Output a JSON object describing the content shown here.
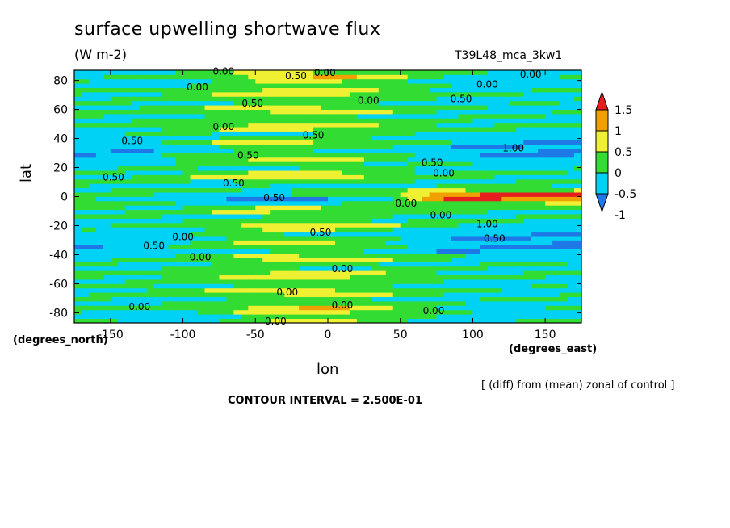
{
  "chart_data": {
    "type": "heatmap",
    "title": "surface upwelling shortwave flux",
    "units": "(W m-2)",
    "run_label": "T39L48_mca_3kw1",
    "xlabel": "lon",
    "ylabel": "lat",
    "x_units": "(degrees_east)",
    "y_units": "(degrees_north)",
    "xlim": [
      -175,
      175
    ],
    "ylim": [
      -87,
      87
    ],
    "x_ticks": [
      -150,
      -100,
      -50,
      0,
      50,
      100,
      150
    ],
    "y_ticks": [
      80,
      60,
      40,
      20,
      0,
      -20,
      -40,
      -60,
      -80
    ],
    "x_tick_labels": [
      "-150",
      "-100",
      "-50",
      "0",
      "50",
      "100",
      "150"
    ],
    "y_tick_labels": [
      "80",
      "60",
      "40",
      "20",
      "0",
      "-20",
      "-40",
      "-60",
      "-80"
    ],
    "colorbar": {
      "levels": [
        -1,
        -0.5,
        0,
        0.5,
        1,
        1.5
      ],
      "labels": [
        "-1",
        "-0.5",
        "0",
        "0.5",
        "1",
        "1.5"
      ],
      "colors": [
        "#1e78e6",
        "#00d2f5",
        "#32dc32",
        "#f0f032",
        "#f0a000",
        "#e61e1e"
      ]
    },
    "contour_labels": [
      {
        "text": "0.00",
        "lon": -72,
        "lat": 84
      },
      {
        "text": "0.50",
        "lon": -22,
        "lat": 81
      },
      {
        "text": "0.00",
        "lon": -2,
        "lat": 83
      },
      {
        "text": "0.00",
        "lon": 140,
        "lat": 82
      },
      {
        "text": "0.00",
        "lon": -90,
        "lat": 73
      },
      {
        "text": "0.00",
        "lon": 110,
        "lat": 75
      },
      {
        "text": "0.50",
        "lon": -52,
        "lat": 62
      },
      {
        "text": "0.00",
        "lon": 28,
        "lat": 64
      },
      {
        "text": "0.50",
        "lon": 92,
        "lat": 65
      },
      {
        "text": "0.00",
        "lon": -72,
        "lat": 46
      },
      {
        "text": "0.50",
        "lon": -135,
        "lat": 36
      },
      {
        "text": "0.50",
        "lon": -10,
        "lat": 40
      },
      {
        "text": "1.00",
        "lon": 128,
        "lat": 31
      },
      {
        "text": "0.50",
        "lon": -55,
        "lat": 26
      },
      {
        "text": "0.50",
        "lon": 72,
        "lat": 21
      },
      {
        "text": "0.50",
        "lon": -148,
        "lat": 11
      },
      {
        "text": "0.50",
        "lon": -65,
        "lat": 7
      },
      {
        "text": "0.00",
        "lon": 80,
        "lat": 14
      },
      {
        "text": "0.50",
        "lon": -37,
        "lat": -3
      },
      {
        "text": "0.00",
        "lon": 54,
        "lat": -7
      },
      {
        "text": "0.00",
        "lon": 78,
        "lat": -15
      },
      {
        "text": "1.00",
        "lon": 110,
        "lat": -21
      },
      {
        "text": "0.00",
        "lon": -100,
        "lat": -30
      },
      {
        "text": "0.50",
        "lon": -5,
        "lat": -27
      },
      {
        "text": "0.50",
        "lon": 115,
        "lat": -31
      },
      {
        "text": "0.50",
        "lon": -120,
        "lat": -36
      },
      {
        "text": "0.00",
        "lon": -88,
        "lat": -44
      },
      {
        "text": "0.00",
        "lon": 10,
        "lat": -52
      },
      {
        "text": "0.00",
        "lon": -28,
        "lat": -68
      },
      {
        "text": "0.00",
        "lon": -130,
        "lat": -78
      },
      {
        "text": "0.00",
        "lon": 10,
        "lat": -77
      },
      {
        "text": "0.00",
        "lon": 73,
        "lat": -81
      },
      {
        "text": "0.00",
        "lon": -36,
        "lat": -88
      }
    ]
  },
  "footer": {
    "diff_note": "[ (diff) from (mean) zonal of control ]",
    "contour_interval": "CONTOUR INTERVAL = 2.500E-01"
  }
}
